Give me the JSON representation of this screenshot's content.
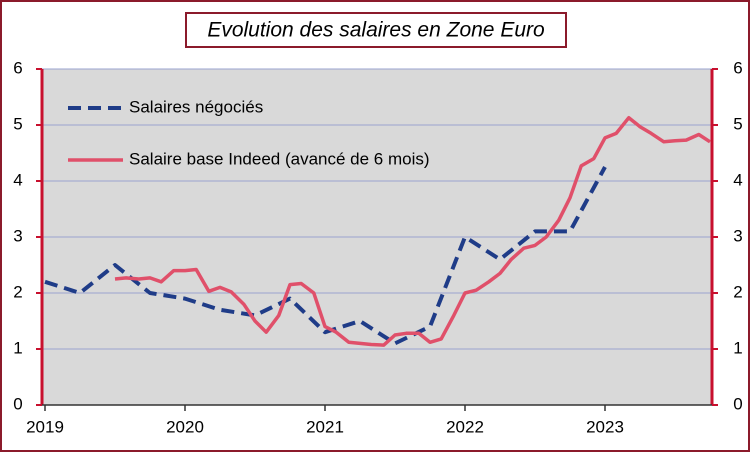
{
  "chart_data": {
    "type": "line",
    "title": "Evolution des salaires en Zone Euro",
    "xlim": [
      2019,
      2023.75
    ],
    "xticks": [
      2019,
      2020,
      2021,
      2022,
      2023
    ],
    "ylim": [
      0,
      6
    ],
    "yticks": [
      0,
      1,
      2,
      3,
      4,
      5,
      6
    ],
    "y2lim": [
      0,
      6
    ],
    "y2ticks": [
      0,
      1,
      2,
      3,
      4,
      5,
      6
    ],
    "grid": true,
    "legend": "upper left",
    "series": [
      {
        "name": "Salaires négociés",
        "color": "#1f3c88",
        "dash": true,
        "x": [
          2019,
          2019.25,
          2019.5,
          2019.75,
          2020,
          2020.25,
          2020.5,
          2020.75,
          2021,
          2021.25,
          2021.5,
          2021.75,
          2022,
          2022.25,
          2022.5,
          2022.75,
          2023
        ],
        "values": [
          2.2,
          2.0,
          2.5,
          2.0,
          1.9,
          1.7,
          1.6,
          1.9,
          1.3,
          1.5,
          1.1,
          1.4,
          3.0,
          2.6,
          3.1,
          3.1,
          4.25
        ]
      },
      {
        "name": "Salaire base Indeed (avancé de 6 mois)",
        "color": "#e0506a",
        "dash": false,
        "x": [
          2019.5,
          2019.58,
          2019.67,
          2019.75,
          2019.83,
          2019.92,
          2020,
          2020.08,
          2020.17,
          2020.25,
          2020.33,
          2020.42,
          2020.5,
          2020.58,
          2020.67,
          2020.75,
          2020.83,
          2020.92,
          2021,
          2021.08,
          2021.17,
          2021.25,
          2021.33,
          2021.42,
          2021.5,
          2021.58,
          2021.67,
          2021.75,
          2021.83,
          2021.92,
          2022,
          2022.08,
          2022.17,
          2022.25,
          2022.33,
          2022.42,
          2022.5,
          2022.58,
          2022.67,
          2022.75,
          2022.83,
          2022.92,
          2023,
          2023.08,
          2023.17,
          2023.25,
          2023.33,
          2023.42,
          2023.5,
          2023.58,
          2023.67,
          2023.75
        ],
        "values": [
          2.25,
          2.27,
          2.25,
          2.27,
          2.2,
          2.4,
          2.4,
          2.42,
          2.03,
          2.1,
          2.02,
          1.8,
          1.5,
          1.3,
          1.6,
          2.15,
          2.17,
          2.0,
          1.4,
          1.3,
          1.12,
          1.1,
          1.08,
          1.07,
          1.25,
          1.28,
          1.28,
          1.12,
          1.18,
          1.6,
          2.0,
          2.05,
          2.2,
          2.35,
          2.6,
          2.8,
          2.85,
          3.0,
          3.3,
          3.7,
          4.27,
          4.4,
          4.77,
          4.85,
          5.13,
          4.97,
          4.85,
          4.7,
          4.72,
          4.73,
          4.83,
          4.7
        ]
      }
    ]
  }
}
